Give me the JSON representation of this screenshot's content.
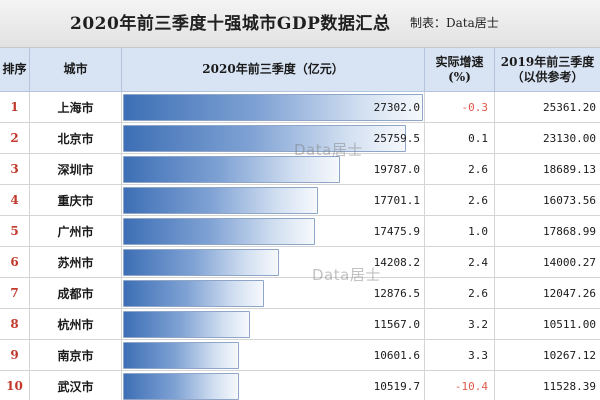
{
  "header": {
    "title": "2020年前三季度十强城市GDP数据汇总",
    "credit": "制表：Data居士"
  },
  "columns": {
    "rank": "排序",
    "city": "城市",
    "gdp": "2020年前三季度（亿元）",
    "rate_line1": "实际增速",
    "rate_line2": "(%)",
    "prev_line1": "2019年前三季度",
    "prev_line2": "（以供参考）"
  },
  "watermark": "Data居士",
  "chart_data": {
    "type": "table",
    "xlabel": "",
    "ylabel": "",
    "rows": [
      {
        "rank": "1",
        "city": "上海市",
        "gdp_2020": 27302.0,
        "gdp_2020_text": "27302.0",
        "growth": "-0.3",
        "gdp_2019": "25361.20"
      },
      {
        "rank": "2",
        "city": "北京市",
        "gdp_2020": 25759.5,
        "gdp_2020_text": "25759.5",
        "growth": "0.1",
        "gdp_2019": "23130.00"
      },
      {
        "rank": "3",
        "city": "深圳市",
        "gdp_2020": 19787.0,
        "gdp_2020_text": "19787.0",
        "growth": "2.6",
        "gdp_2019": "18689.13"
      },
      {
        "rank": "4",
        "city": "重庆市",
        "gdp_2020": 17701.1,
        "gdp_2020_text": "17701.1",
        "growth": "2.6",
        "gdp_2019": "16073.56"
      },
      {
        "rank": "5",
        "city": "广州市",
        "gdp_2020": 17475.9,
        "gdp_2020_text": "17475.9",
        "growth": "1.0",
        "gdp_2019": "17868.99"
      },
      {
        "rank": "6",
        "city": "苏州市",
        "gdp_2020": 14208.2,
        "gdp_2020_text": "14208.2",
        "growth": "2.4",
        "gdp_2019": "14000.27"
      },
      {
        "rank": "7",
        "city": "成都市",
        "gdp_2020": 12876.5,
        "gdp_2020_text": "12876.5",
        "growth": "2.6",
        "gdp_2019": "12047.26"
      },
      {
        "rank": "8",
        "city": "杭州市",
        "gdp_2020": 11567.0,
        "gdp_2020_text": "11567.0",
        "growth": "3.2",
        "gdp_2019": "10511.00"
      },
      {
        "rank": "9",
        "city": "南京市",
        "gdp_2020": 10601.6,
        "gdp_2020_text": "10601.6",
        "growth": "3.3",
        "gdp_2019": "10267.12"
      },
      {
        "rank": "10",
        "city": "武汉市",
        "gdp_2020": 10519.7,
        "gdp_2020_text": "10519.7",
        "growth": "-10.4",
        "gdp_2019": "11528.39"
      }
    ]
  }
}
